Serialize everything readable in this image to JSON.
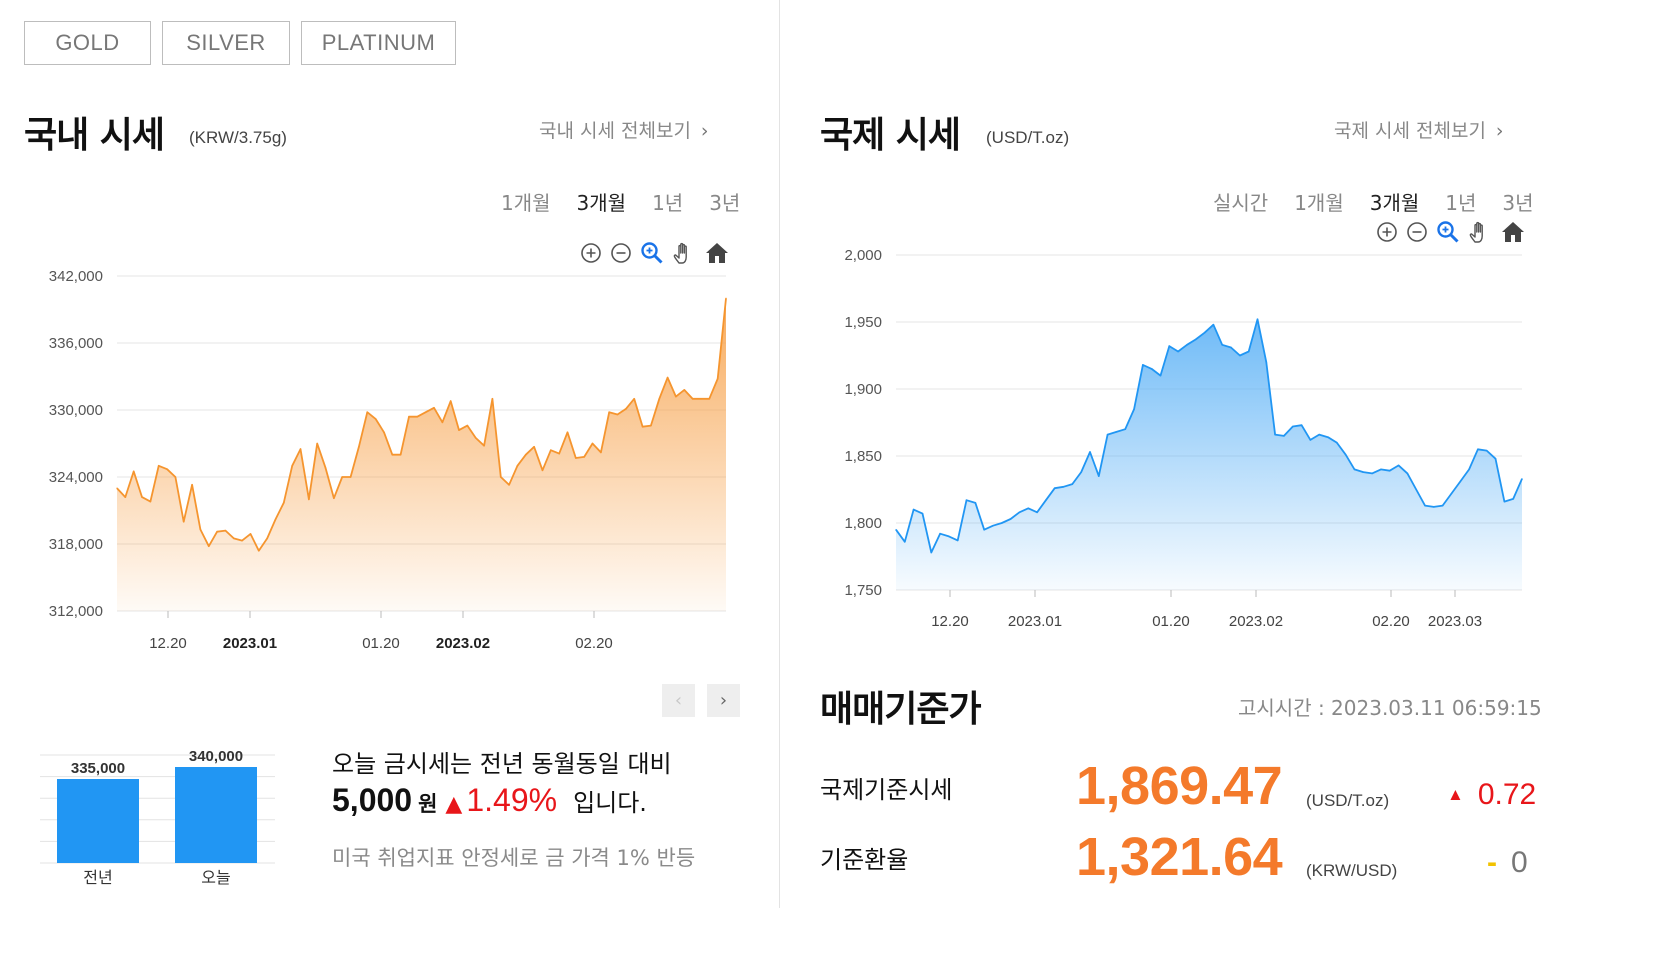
{
  "metal_tabs": [
    {
      "label": "GOLD",
      "active": true
    },
    {
      "label": "SILVER",
      "active": false
    },
    {
      "label": "PLATINUM",
      "active": false
    }
  ],
  "domestic": {
    "title": "국내 시세",
    "unit": "(KRW/3.75g)",
    "view_all": "국내 시세 전체보기",
    "periods": [
      "1개월",
      "3개월",
      "1년",
      "3년"
    ],
    "active_period": "3개월",
    "tools": [
      "zoom-in-icon",
      "zoom-out-icon",
      "magnifier-icon",
      "pan-hand-icon",
      "home-icon"
    ],
    "accent_color": "#f5952f",
    "compare": {
      "bars": [
        {
          "label": "전년",
          "value": 335000,
          "value_label": "335,000"
        },
        {
          "label": "오늘",
          "value": 340000,
          "value_label": "340,000"
        }
      ],
      "bar_color": "#2196f3"
    },
    "summary": {
      "line1": "오늘 금시세는 전년 동월동일 대비",
      "amount": "5,000",
      "currency": "원",
      "arrow": "▲",
      "percent": "1.49%",
      "tail": "입니다.",
      "news": "미국 취업지표 안정세로 금 가격 1% 반등"
    }
  },
  "international": {
    "title": "국제 시세",
    "unit": "(USD/T.oz)",
    "view_all": "국제 시세 전체보기",
    "periods": [
      "실시간",
      "1개월",
      "3개월",
      "1년",
      "3년"
    ],
    "active_period": "3개월",
    "tools": [
      "zoom-in-icon",
      "zoom-out-icon",
      "magnifier-icon",
      "pan-hand-icon",
      "home-icon"
    ],
    "accent_color": "#2196f3"
  },
  "base_price": {
    "title": "매매기준가",
    "notice_time": "고시시간 : 2023.03.11 06:59:15",
    "rows": [
      {
        "label": "국제기준시세",
        "value": "1,869.47",
        "unit": "(USD/T.oz)",
        "change_symbol": "▲",
        "change": "0.72",
        "direction": "up"
      },
      {
        "label": "기준환율",
        "value": "1,321.64",
        "unit": "(KRW/USD)",
        "change_symbol": "-",
        "change": "0",
        "direction": "flat"
      }
    ],
    "up_color": "#e8161a",
    "flat_symbol_color": "#f2c200"
  },
  "chart_data": [
    {
      "type": "area",
      "series": [
        {
          "values": [
            323000,
            322200,
            324500,
            322200,
            321800,
            325000,
            324700,
            324000,
            320000,
            323300,
            319300,
            317800,
            319100,
            319200,
            318500,
            318300,
            318900,
            317400,
            318500,
            320200,
            321700,
            325000,
            326500,
            322000,
            327000,
            324800,
            322100,
            324000,
            324000,
            326700,
            329800,
            329200,
            328000,
            326000,
            326000,
            329400,
            329400,
            329800,
            330200,
            328900,
            330800,
            328200,
            328600,
            327500,
            326800,
            331000,
            324000,
            323300,
            325000,
            326000,
            326700,
            324600,
            326400,
            326100,
            328000,
            325700,
            325800,
            327000,
            326200,
            329800,
            329600,
            330100,
            331000,
            328500,
            328600,
            331000,
            332900,
            331200,
            331800,
            331000,
            331000,
            331000,
            332800,
            340000
          ]
        }
      ],
      "x_ticks": [
        "12.20",
        "2023.01",
        "01.20",
        "2023.02",
        "02.20"
      ],
      "bold_ticks": [
        "2023.01",
        "2023.02"
      ],
      "y_ticks": [
        "342,000",
        "336,000",
        "330,000",
        "324,000",
        "318,000",
        "312,000"
      ],
      "ylim": [
        312000,
        342000
      ],
      "grid": true,
      "color": "#f5952f"
    },
    {
      "type": "area",
      "series": [
        {
          "values": [
            1795,
            1786,
            1810,
            1807,
            1778,
            1792,
            1790,
            1787,
            1817,
            1815,
            1795,
            1798,
            1800,
            1803,
            1808,
            1811,
            1808,
            1817,
            1826,
            1827,
            1829,
            1838,
            1853,
            1835,
            1866,
            1868,
            1870,
            1885,
            1918,
            1915,
            1910,
            1932,
            1928,
            1933,
            1937,
            1942,
            1948,
            1933,
            1931,
            1925,
            1928,
            1952,
            1920,
            1866,
            1865,
            1872,
            1873,
            1862,
            1866,
            1864,
            1860,
            1851,
            1840,
            1838,
            1837,
            1840,
            1839,
            1843,
            1837,
            1825,
            1813,
            1812,
            1813,
            1822,
            1831,
            1840,
            1855,
            1854,
            1848,
            1816,
            1818,
            1833
          ]
        }
      ],
      "x_ticks": [
        "12.20",
        "2023.01",
        "01.20",
        "2023.02",
        "02.20",
        "2023.03"
      ],
      "y_ticks": [
        "2,000",
        "1,950",
        "1,900",
        "1,850",
        "1,800",
        "1,750"
      ],
      "ylim": [
        1750,
        2000
      ],
      "grid": true,
      "color": "#2196f3"
    }
  ]
}
